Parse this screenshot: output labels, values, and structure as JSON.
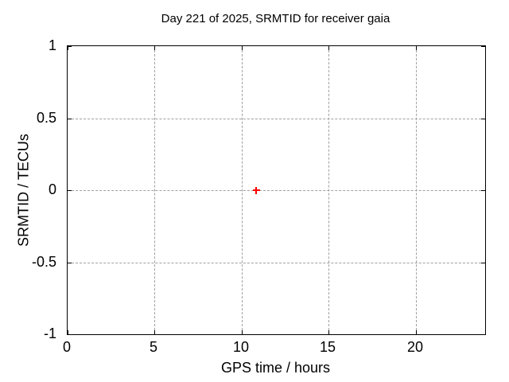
{
  "chart_data": {
    "type": "scatter",
    "title": "Day 221 of 2025, SRMTID for receiver gaia",
    "xlabel": "GPS time / hours",
    "ylabel": "SRMTID / TECUs",
    "xlim": [
      0,
      24
    ],
    "ylim": [
      -1,
      1
    ],
    "xticks": [
      0,
      5,
      10,
      15,
      20
    ],
    "yticks": [
      -1,
      -0.5,
      0,
      0.5,
      1
    ],
    "grid": true,
    "legend": "none",
    "colors": {
      "axis": "#000000",
      "grid": "#a0a0a0",
      "background": "#ffffff"
    },
    "series": [
      {
        "name": "SRMTID",
        "marker": "plus",
        "color": "#ff0000",
        "points": [
          {
            "x": 10.83,
            "y": 0.0
          }
        ]
      }
    ]
  }
}
